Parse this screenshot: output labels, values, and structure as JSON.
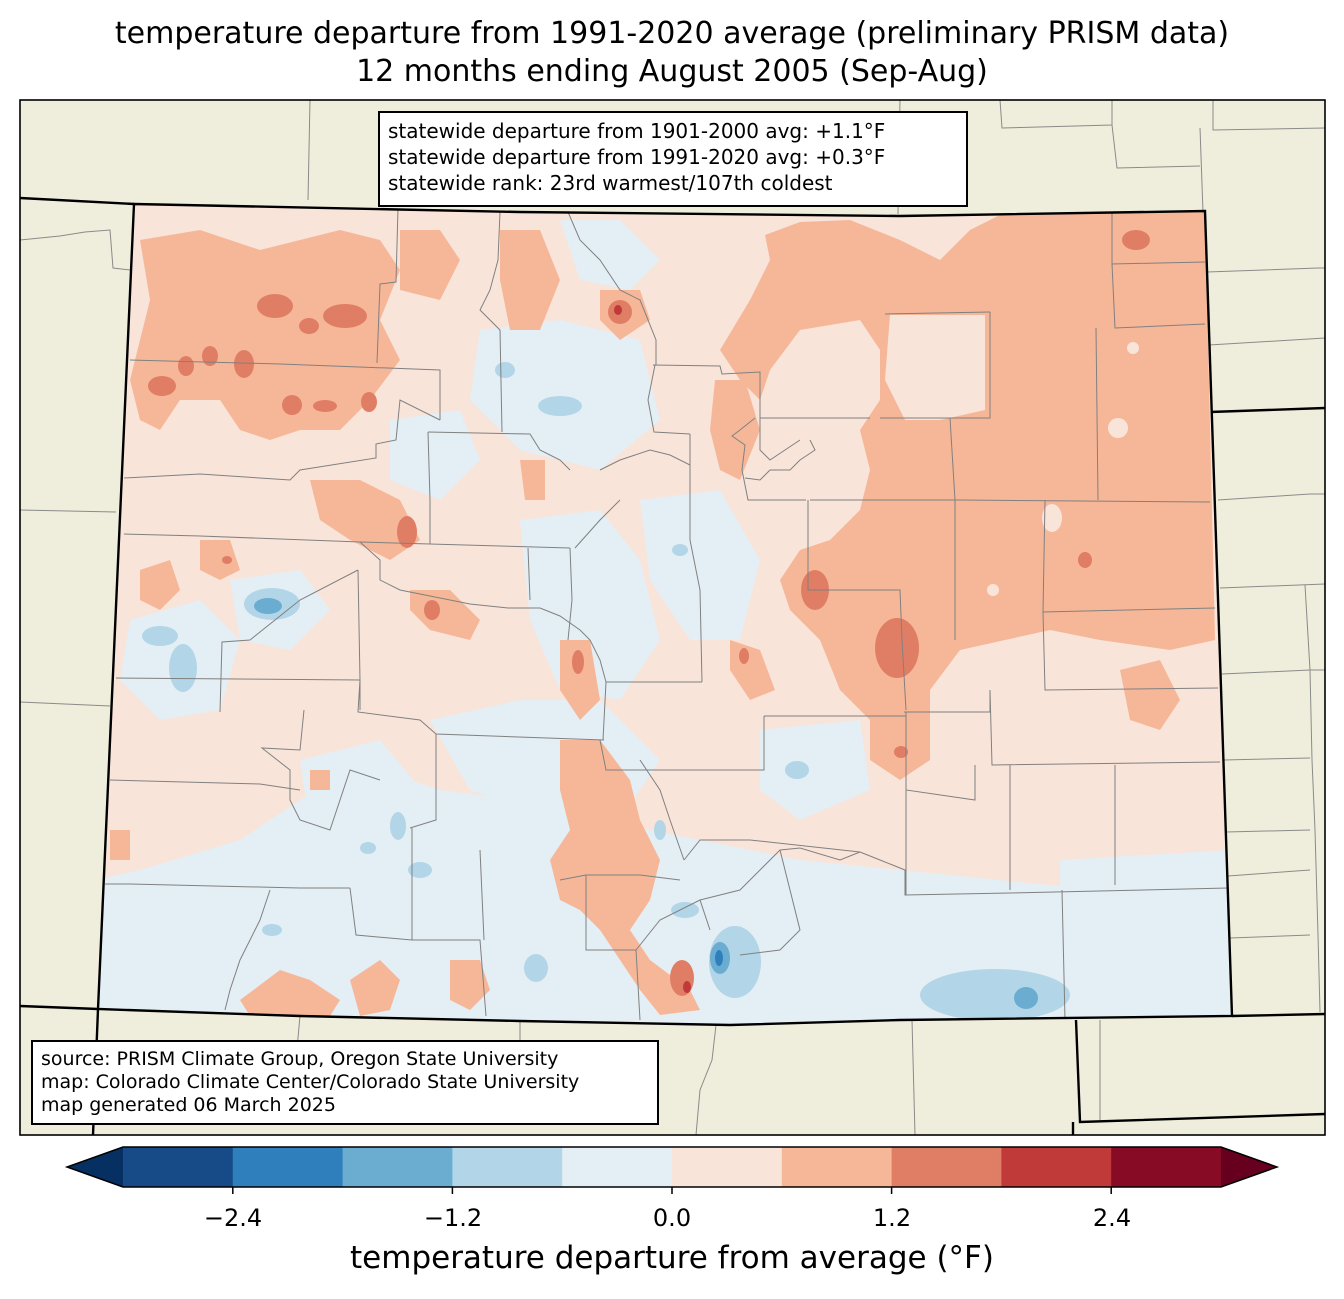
{
  "title": {
    "line1": "temperature departure from 1991-2020 average (preliminary PRISM data)",
    "line2": "12 months ending August 2005 (Sep-Aug)"
  },
  "stats": {
    "line1": "statewide departure from 1901-2000 avg: +1.1°F",
    "line2": "statewide departure from 1991-2020 avg: +0.3°F",
    "line3": "statewide rank: 23rd warmest/107th coldest"
  },
  "source": {
    "line1": "source: PRISM Climate Group, Oregon State University",
    "line2": "map: Colorado Climate Center/Colorado State University",
    "line3": "map generated 06 March 2025"
  },
  "colorbar": {
    "title": "temperature departure from average (°F)",
    "ticks": [
      "−2.4",
      "−1.2",
      "0.0",
      "1.2",
      "2.4"
    ],
    "min": -3.0,
    "max": 3.0,
    "step": 0.6,
    "colors": [
      "#053061",
      "#164b87",
      "#2f7fbc",
      "#6bacd1",
      "#b2d6e8",
      "#e4eef5",
      "#f9e4da",
      "#f6b799",
      "#e07e65",
      "#c03a3a",
      "#870b24",
      "#67001f"
    ]
  },
  "colors": {
    "land": "#efeedc",
    "state_border": "#000000",
    "county_border": "#808080"
  }
}
